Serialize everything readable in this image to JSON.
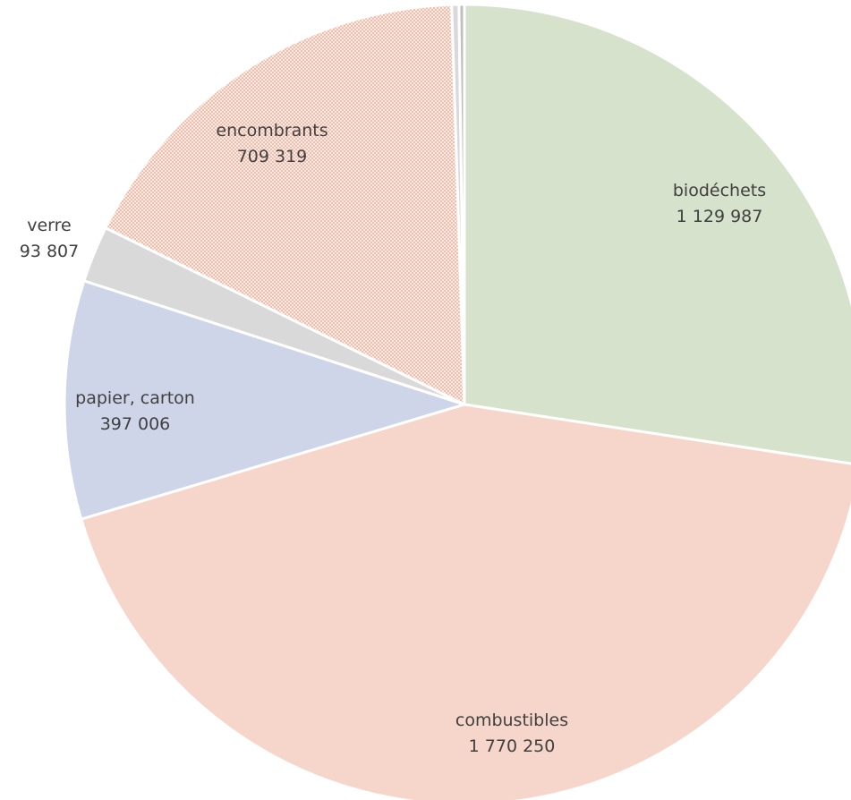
{
  "chart_data": {
    "type": "pie",
    "title": "",
    "slices": [
      {
        "label": "biodéchets",
        "value_text": "1 129 987",
        "value": 1129987,
        "color": "#d6e2cc"
      },
      {
        "label": "combustibles",
        "value_text": "1 770 250",
        "value": 1770250,
        "color": "#f6d6ca"
      },
      {
        "label": "papier, carton",
        "value_text": "397 006",
        "value": 397006,
        "color": "#cfd5e8"
      },
      {
        "label": "verre",
        "value_text": "93 807",
        "value": 93807,
        "color": "#d9d9d9"
      },
      {
        "label": "encombrants",
        "value_text": "709 319",
        "value": 709319,
        "color": "#f4d2c4",
        "pattern": "dotted"
      },
      {
        "label": "",
        "value_text": "",
        "value": 12000,
        "color": "#d9d9d9"
      },
      {
        "label": "",
        "value_text": "",
        "value": 9000,
        "color": "#bfbfbf"
      }
    ]
  }
}
